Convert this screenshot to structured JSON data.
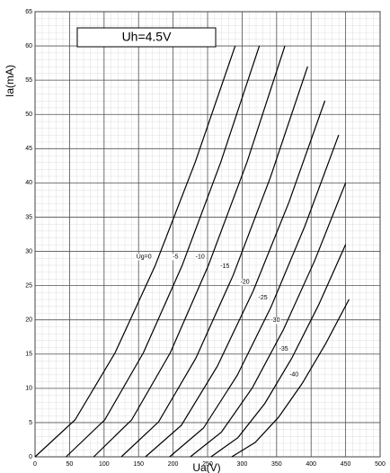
{
  "chart_data": {
    "type": "line",
    "title": "Uh=4.5V",
    "x_label": "Ua(V)",
    "y_label": "Ia(mA)",
    "xlim": [
      0,
      500
    ],
    "ylim": [
      0,
      65
    ],
    "xticks": [
      0,
      50,
      100,
      150,
      200,
      250,
      300,
      350,
      400,
      450,
      500
    ],
    "yticks": [
      0,
      5,
      10,
      15,
      20,
      25,
      30,
      35,
      40,
      45,
      50,
      55,
      60,
      65
    ],
    "grid": true,
    "color": "#000000",
    "series": [
      {
        "name": "Ug=0",
        "x": [
          0,
          58,
          116,
          174,
          232,
          290
        ],
        "values": [
          0,
          5.4,
          15.2,
          27.9,
          43,
          60
        ]
      },
      {
        "name": "-5",
        "x": [
          45,
          101,
          157,
          213,
          269,
          325
        ],
        "values": [
          0,
          5.4,
          15.2,
          27.9,
          43,
          60
        ]
      },
      {
        "name": "-10",
        "x": [
          85,
          140,
          196,
          251,
          307,
          362
        ],
        "values": [
          0,
          5.4,
          15.2,
          27.9,
          43,
          60
        ]
      },
      {
        "name": "-15",
        "x": [
          125,
          179,
          233,
          287,
          341,
          395
        ],
        "values": [
          0,
          5.1,
          14.4,
          26.5,
          40.8,
          57
        ]
      },
      {
        "name": "-20",
        "x": [
          160,
          212,
          264,
          316,
          368,
          420
        ],
        "values": [
          0,
          4.6,
          13.2,
          24.2,
          37.2,
          52
        ]
      },
      {
        "name": "-25",
        "x": [
          195,
          244,
          293,
          342,
          391,
          440
        ],
        "values": [
          0,
          4.2,
          11.9,
          21.9,
          33.7,
          47
        ]
      },
      {
        "name": "-30",
        "x": [
          225,
          270,
          315,
          360,
          405,
          450
        ],
        "values": [
          0,
          3.6,
          10.1,
          18.6,
          28.6,
          40
        ]
      },
      {
        "name": "-35",
        "x": [
          255,
          294,
          333,
          372,
          411,
          450
        ],
        "values": [
          0,
          2.8,
          7.8,
          14.4,
          22.2,
          31
        ]
      },
      {
        "name": "-40",
        "x": [
          285,
          319,
          353,
          387,
          421,
          455
        ],
        "values": [
          0,
          2.1,
          5.8,
          10.7,
          16.5,
          23
        ]
      }
    ]
  }
}
